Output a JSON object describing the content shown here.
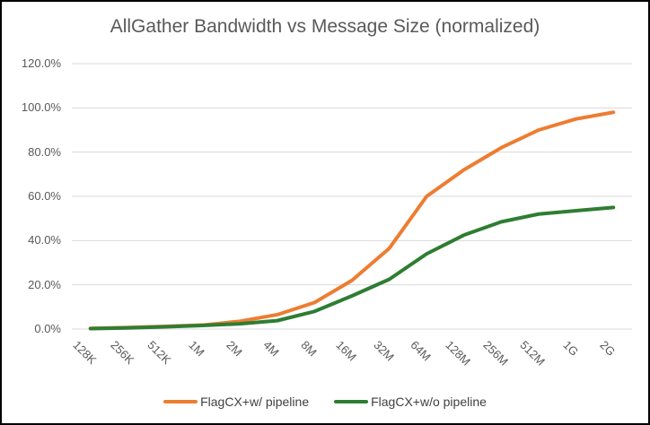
{
  "frame": {
    "background_color": "#FFFFFF",
    "border_color": "#000000"
  },
  "chart_data": {
    "type": "line",
    "title": "AllGather Bandwidth vs Message Size (normalized)",
    "categories": [
      "128K",
      "256K",
      "512K",
      "1M",
      "2M",
      "4M",
      "8M",
      "16M",
      "32M",
      "64M",
      "128M",
      "256M",
      "512M",
      "1G",
      "2G"
    ],
    "series": [
      {
        "name": "FlagCX+w/ pipeline",
        "color": "#ED7D31",
        "values": [
          0.3,
          0.7,
          1.2,
          1.8,
          3.5,
          6.5,
          12.0,
          22.0,
          36.5,
          60.0,
          72.0,
          82.0,
          90.0,
          95.0,
          98.0
        ]
      },
      {
        "name": "FlagCX+w/o pipeline",
        "color": "#2E7D32",
        "values": [
          0.2,
          0.5,
          1.0,
          1.6,
          2.4,
          3.8,
          8.0,
          15.0,
          22.5,
          34.0,
          42.5,
          48.5,
          52.0,
          53.5,
          55.0
        ]
      }
    ],
    "y_axis": {
      "tick_labels": [
        "0.0%",
        "20.0%",
        "40.0%",
        "60.0%",
        "80.0%",
        "100.0%",
        "120.0%"
      ],
      "min": 0,
      "max": 120,
      "step": 20
    },
    "x_axis": {
      "label_rotation_deg": 45
    },
    "grid": "horizontal",
    "legend_position": "bottom",
    "styles": {
      "gridline_color": "#D9D9D9",
      "title_color": "#595959",
      "axis_label_color": "#595959",
      "legend_text_color": "#404040",
      "line_width": 4
    }
  }
}
